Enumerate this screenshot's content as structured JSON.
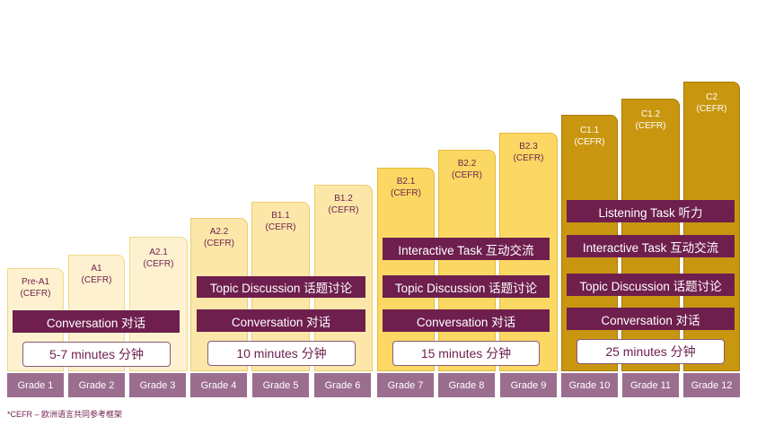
{
  "levels": [
    {
      "code": "Pre-A1",
      "ref": "(CEFR)"
    },
    {
      "code": "A1",
      "ref": "(CEFR)"
    },
    {
      "code": "A2.1",
      "ref": "(CEFR)"
    },
    {
      "code": "A2.2",
      "ref": "(CEFR)"
    },
    {
      "code": "B1.1",
      "ref": "(CEFR)"
    },
    {
      "code": "B1.2",
      "ref": "(CEFR)"
    },
    {
      "code": "B2.1",
      "ref": "(CEFR)"
    },
    {
      "code": "B2.2",
      "ref": "(CEFR)"
    },
    {
      "code": "B2.3",
      "ref": "(CEFR)"
    },
    {
      "code": "C1.1",
      "ref": "(CEFR)"
    },
    {
      "code": "C1.2",
      "ref": "(CEFR)"
    },
    {
      "code": "C2",
      "ref": "(CEFR)"
    }
  ],
  "groups": [
    {
      "tasks": [
        "Conversation 对话"
      ],
      "time": "5-7 minutes 分钟"
    },
    {
      "tasks": [
        "Topic Discussion 话题讨论",
        "Conversation 对话"
      ],
      "time": "10 minutes 分钟"
    },
    {
      "tasks": [
        "Interactive Task 互动交流",
        "Topic Discussion 话题讨论",
        "Conversation 对话"
      ],
      "time": "15 minutes 分钟"
    },
    {
      "tasks": [
        "Listening Task 听力",
        "Interactive Task 互动交流",
        "Topic Discussion 话题讨论",
        "Conversation 对话"
      ],
      "time": "25 minutes 分钟"
    }
  ],
  "grades": [
    "Grade 1",
    "Grade 2",
    "Grade 3",
    "Grade 4",
    "Grade 5",
    "Grade 6",
    "Grade 7",
    "Grade 8",
    "Grade 9",
    "Grade 10",
    "Grade 11",
    "Grade 12"
  ],
  "footnote": "*CEFR – 欧洲语言共同参考框架"
}
